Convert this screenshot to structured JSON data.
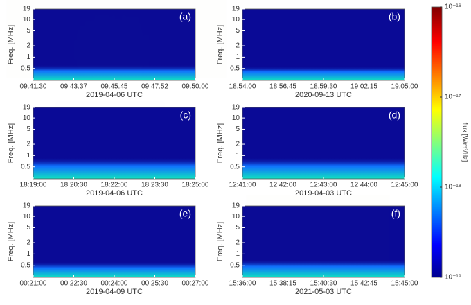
{
  "chart_data": [
    {
      "type": "spectrogram",
      "panel_label": "(a)",
      "ylabel": "Freq. [MHz]",
      "xlabel": "2019-04-06 UTC",
      "xticks": [
        "09:41:30",
        "09:43:37",
        "09:45:45",
        "09:47:52",
        "09:50:00"
      ],
      "ylim": [
        0.24,
        19
      ],
      "yticks": [
        0.5,
        1,
        2,
        5,
        10,
        19
      ],
      "yscale": "log"
    },
    {
      "type": "spectrogram",
      "panel_label": "(b)",
      "ylabel": "Freq. [MHz]",
      "xlabel": "2020-09-13 UTC",
      "xticks": [
        "18:54:00",
        "18:56:45",
        "18:59:30",
        "19:02:15",
        "19:05:00"
      ],
      "ylim": [
        0.24,
        19
      ],
      "yticks": [
        0.5,
        1,
        2,
        5,
        10,
        19
      ],
      "yscale": "log"
    },
    {
      "type": "spectrogram",
      "panel_label": "(c)",
      "ylabel": "Freq. [MHz]",
      "xlabel": "2019-04-06 UTC",
      "xticks": [
        "18:19:00",
        "18:20:30",
        "18:22:00",
        "18:23:30",
        "18:25:00"
      ],
      "ylim": [
        0.24,
        19
      ],
      "yticks": [
        0.5,
        1,
        2,
        5,
        10,
        19
      ],
      "yscale": "log"
    },
    {
      "type": "spectrogram",
      "panel_label": "(d)",
      "ylabel": "Freq. [MHz]",
      "xlabel": "2019-04-03 UTC",
      "xticks": [
        "12:41:00",
        "12:42:00",
        "12:43:00",
        "12:44:00",
        "12:45:00"
      ],
      "ylim": [
        0.24,
        19
      ],
      "yticks": [
        0.5,
        1,
        2,
        5,
        10,
        19
      ],
      "yscale": "log"
    },
    {
      "type": "spectrogram",
      "panel_label": "(e)",
      "ylabel": "Freq. [MHz]",
      "xlabel": "2019-04-09 UTC",
      "xticks": [
        "00:21:00",
        "00:22:30",
        "00:24:00",
        "00:25:30",
        "00:27:00"
      ],
      "ylim": [
        0.24,
        19
      ],
      "yticks": [
        0.5,
        1,
        2,
        5,
        10,
        19
      ],
      "yscale": "log"
    },
    {
      "type": "spectrogram",
      "panel_label": "(f)",
      "ylabel": "Freq. [MHz]",
      "xlabel": "2021-05-03 UTC",
      "xticks": [
        "15:36:00",
        "15:38:15",
        "15:40:30",
        "15:42:45",
        "15:45:00"
      ],
      "ylim": [
        0.24,
        19
      ],
      "yticks": [
        0.5,
        1,
        2,
        5,
        10,
        19
      ],
      "yscale": "log"
    }
  ],
  "colorbar": {
    "label": "flux [W/m²/Hz]",
    "scale": "log",
    "lim": [
      1e-19,
      1e-16
    ],
    "ticks": [
      {
        "value": 1e-19,
        "label": "10⁻¹⁹"
      },
      {
        "value": 1e-18,
        "label": "10⁻¹⁸"
      },
      {
        "value": 1e-17,
        "label": "10⁻¹⁷"
      },
      {
        "value": 1e-16,
        "label": "10⁻¹⁶"
      }
    ]
  }
}
